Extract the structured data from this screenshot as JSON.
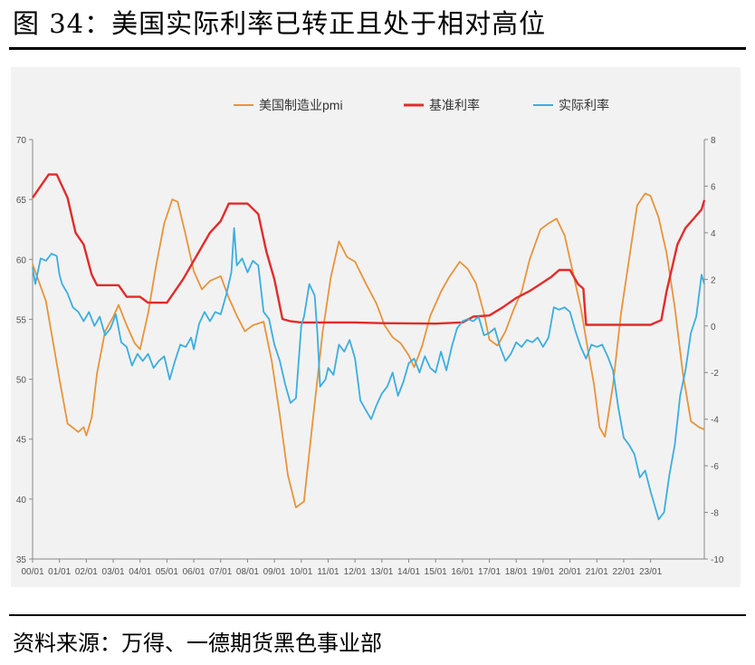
{
  "header": {
    "title": "图 34：美国实际利率已转正且处于相对高位"
  },
  "footer": {
    "source": "资料来源：万得、一德期货黑色事业部"
  },
  "chart_data": {
    "type": "line",
    "title": "",
    "legend_position": "top",
    "grid": false,
    "x_ticks": [
      "00/01",
      "01/01",
      "02/01",
      "03/01",
      "04/01",
      "05/01",
      "06/01",
      "07/01",
      "08/01",
      "09/01",
      "10/01",
      "11/01",
      "12/01",
      "13/01",
      "14/01",
      "15/01",
      "16/01",
      "17/01",
      "18/01",
      "19/01",
      "20/01",
      "21/01",
      "22/01",
      "23/01"
    ],
    "y_left": {
      "min": 35,
      "max": 70,
      "ticks": [
        35,
        40,
        45,
        50,
        55,
        60,
        65,
        70
      ]
    },
    "y_right": {
      "min": -10,
      "max": 8,
      "ticks": [
        -10,
        -8,
        -6,
        -4,
        -2,
        0,
        2,
        4,
        6,
        8
      ]
    },
    "series": [
      {
        "name": "美国制造业pmi",
        "axis": "left",
        "color": "#e8943a",
        "points": [
          [
            2000.0,
            59.6
          ],
          [
            2000.5,
            56.5
          ],
          [
            2001.0,
            50.0
          ],
          [
            2001.3,
            46.3
          ],
          [
            2001.7,
            45.6
          ],
          [
            2001.9,
            46.0
          ],
          [
            2002.0,
            45.3
          ],
          [
            2002.2,
            46.8
          ],
          [
            2002.4,
            50.5
          ],
          [
            2002.7,
            54.0
          ],
          [
            2003.0,
            55.2
          ],
          [
            2003.2,
            56.2
          ],
          [
            2003.5,
            54.5
          ],
          [
            2003.8,
            53.0
          ],
          [
            2004.0,
            52.5
          ],
          [
            2004.3,
            55.5
          ],
          [
            2004.6,
            59.5
          ],
          [
            2004.9,
            63.0
          ],
          [
            2005.2,
            65.0
          ],
          [
            2005.4,
            64.8
          ],
          [
            2005.7,
            62.0
          ],
          [
            2006.0,
            59.0
          ],
          [
            2006.3,
            57.5
          ],
          [
            2006.6,
            58.2
          ],
          [
            2007.0,
            58.6
          ],
          [
            2007.3,
            56.8
          ],
          [
            2007.6,
            55.3
          ],
          [
            2007.9,
            54.0
          ],
          [
            2008.2,
            54.5
          ],
          [
            2008.6,
            54.8
          ],
          [
            2008.9,
            51.5
          ],
          [
            2009.2,
            47.0
          ],
          [
            2009.5,
            42.0
          ],
          [
            2009.8,
            39.3
          ],
          [
            2010.1,
            39.8
          ],
          [
            2010.4,
            46.0
          ],
          [
            2010.8,
            54.0
          ],
          [
            2011.1,
            58.5
          ],
          [
            2011.4,
            61.5
          ],
          [
            2011.7,
            60.2
          ],
          [
            2012.0,
            59.8
          ],
          [
            2012.4,
            58.0
          ],
          [
            2012.8,
            56.3
          ],
          [
            2013.1,
            54.5
          ],
          [
            2013.4,
            53.5
          ],
          [
            2013.7,
            53.0
          ],
          [
            2014.0,
            52.0
          ],
          [
            2014.2,
            51.0
          ],
          [
            2014.5,
            52.8
          ],
          [
            2014.8,
            55.3
          ],
          [
            2015.2,
            57.3
          ],
          [
            2015.5,
            58.5
          ],
          [
            2015.9,
            59.8
          ],
          [
            2016.2,
            59.2
          ],
          [
            2016.5,
            58.0
          ],
          [
            2016.8,
            55.5
          ],
          [
            2017.0,
            53.3
          ],
          [
            2017.3,
            52.8
          ],
          [
            2017.6,
            54.0
          ],
          [
            2017.9,
            55.8
          ],
          [
            2018.2,
            57.3
          ],
          [
            2018.5,
            60.0
          ],
          [
            2018.9,
            62.5
          ],
          [
            2019.2,
            63.0
          ],
          [
            2019.5,
            63.4
          ],
          [
            2019.8,
            62.0
          ],
          [
            2020.1,
            59.0
          ],
          [
            2020.4,
            56.0
          ],
          [
            2020.7,
            52.0
          ],
          [
            2020.9,
            49.5
          ],
          [
            2021.1,
            46.0
          ],
          [
            2021.3,
            45.2
          ],
          [
            2021.6,
            49.5
          ],
          [
            2021.9,
            55.5
          ],
          [
            2022.2,
            60.0
          ],
          [
            2022.5,
            64.5
          ],
          [
            2022.8,
            65.5
          ],
          [
            2023.0,
            65.3
          ],
          [
            2023.3,
            63.5
          ],
          [
            2023.6,
            60.5
          ],
          [
            2023.9,
            56.0
          ],
          [
            2024.2,
            50.5
          ],
          [
            2024.5,
            46.5
          ],
          [
            2024.8,
            46.0
          ],
          [
            2025.0,
            45.8
          ]
        ]
      },
      {
        "name": "基准利率",
        "axis": "right",
        "color": "#e32b2b",
        "points": [
          [
            2000.0,
            5.5
          ],
          [
            2000.3,
            6.0
          ],
          [
            2000.6,
            6.5
          ],
          [
            2000.9,
            6.5
          ],
          [
            2001.3,
            5.5
          ],
          [
            2001.6,
            4.0
          ],
          [
            2001.9,
            3.5
          ],
          [
            2002.2,
            2.2
          ],
          [
            2002.4,
            1.75
          ],
          [
            2002.8,
            1.75
          ],
          [
            2003.2,
            1.75
          ],
          [
            2003.5,
            1.25
          ],
          [
            2004.0,
            1.25
          ],
          [
            2004.3,
            1.0
          ],
          [
            2005.0,
            1.0
          ],
          [
            2005.6,
            2.0
          ],
          [
            2006.1,
            3.0
          ],
          [
            2006.6,
            4.0
          ],
          [
            2007.0,
            4.5
          ],
          [
            2007.3,
            5.25
          ],
          [
            2008.0,
            5.25
          ],
          [
            2008.4,
            4.8
          ],
          [
            2008.7,
            3.2
          ],
          [
            2009.0,
            2.0
          ],
          [
            2009.3,
            0.3
          ],
          [
            2009.6,
            0.2
          ],
          [
            2010.0,
            0.15
          ],
          [
            2012.0,
            0.15
          ],
          [
            2013.0,
            0.12
          ],
          [
            2015.0,
            0.1
          ],
          [
            2016.0,
            0.15
          ],
          [
            2016.4,
            0.4
          ],
          [
            2017.0,
            0.45
          ],
          [
            2017.5,
            0.8
          ],
          [
            2018.0,
            1.2
          ],
          [
            2018.5,
            1.5
          ],
          [
            2018.9,
            1.8
          ],
          [
            2019.3,
            2.1
          ],
          [
            2019.6,
            2.4
          ],
          [
            2020.0,
            2.4
          ],
          [
            2020.3,
            1.8
          ],
          [
            2020.5,
            1.6
          ],
          [
            2020.6,
            0.05
          ],
          [
            2021.0,
            0.05
          ],
          [
            2023.0,
            0.05
          ],
          [
            2023.4,
            0.25
          ],
          [
            2023.6,
            1.5
          ],
          [
            2023.8,
            2.5
          ],
          [
            2024.0,
            3.5
          ],
          [
            2024.3,
            4.2
          ],
          [
            2024.6,
            4.6
          ],
          [
            2024.9,
            5.0
          ],
          [
            2025.0,
            5.4
          ]
        ]
      },
      {
        "name": "实际利率",
        "axis": "right",
        "color": "#3aaee0",
        "points": [
          [
            2000.0,
            2.5
          ],
          [
            2000.1,
            1.8
          ],
          [
            2000.3,
            2.9
          ],
          [
            2000.5,
            2.8
          ],
          [
            2000.7,
            3.1
          ],
          [
            2000.9,
            3.0
          ],
          [
            2001.0,
            2.2
          ],
          [
            2001.1,
            1.8
          ],
          [
            2001.3,
            1.4
          ],
          [
            2001.5,
            0.8
          ],
          [
            2001.7,
            0.6
          ],
          [
            2001.9,
            0.2
          ],
          [
            2002.1,
            0.6
          ],
          [
            2002.3,
            0.0
          ],
          [
            2002.5,
            0.4
          ],
          [
            2002.7,
            -0.4
          ],
          [
            2002.9,
            -0.1
          ],
          [
            2003.1,
            0.5
          ],
          [
            2003.3,
            -0.7
          ],
          [
            2003.5,
            -0.9
          ],
          [
            2003.7,
            -1.7
          ],
          [
            2003.9,
            -1.2
          ],
          [
            2004.1,
            -1.5
          ],
          [
            2004.3,
            -1.2
          ],
          [
            2004.5,
            -1.8
          ],
          [
            2004.7,
            -1.5
          ],
          [
            2004.9,
            -1.3
          ],
          [
            2005.1,
            -2.3
          ],
          [
            2005.3,
            -1.5
          ],
          [
            2005.5,
            -0.8
          ],
          [
            2005.7,
            -0.9
          ],
          [
            2005.9,
            -0.5
          ],
          [
            2006.0,
            -1.0
          ],
          [
            2006.2,
            0.1
          ],
          [
            2006.4,
            0.6
          ],
          [
            2006.6,
            0.2
          ],
          [
            2006.8,
            0.6
          ],
          [
            2007.0,
            0.5
          ],
          [
            2007.2,
            1.3
          ],
          [
            2007.4,
            2.3
          ],
          [
            2007.5,
            4.2
          ],
          [
            2007.6,
            2.6
          ],
          [
            2007.8,
            2.9
          ],
          [
            2008.0,
            2.3
          ],
          [
            2008.2,
            2.8
          ],
          [
            2008.4,
            2.6
          ],
          [
            2008.6,
            0.6
          ],
          [
            2008.8,
            0.3
          ],
          [
            2009.0,
            -0.8
          ],
          [
            2009.2,
            -1.5
          ],
          [
            2009.4,
            -2.5
          ],
          [
            2009.6,
            -3.3
          ],
          [
            2009.8,
            -3.1
          ],
          [
            2010.0,
            0.0
          ],
          [
            2010.1,
            0.4
          ],
          [
            2010.3,
            1.8
          ],
          [
            2010.5,
            1.3
          ],
          [
            2010.6,
            -0.3
          ],
          [
            2010.7,
            -2.6
          ],
          [
            2010.9,
            -2.3
          ],
          [
            2011.0,
            -1.8
          ],
          [
            2011.2,
            -2.1
          ],
          [
            2011.4,
            -0.8
          ],
          [
            2011.6,
            -1.1
          ],
          [
            2011.8,
            -0.6
          ],
          [
            2012.0,
            -1.4
          ],
          [
            2012.2,
            -3.2
          ],
          [
            2012.4,
            -3.6
          ],
          [
            2012.6,
            -4.0
          ],
          [
            2012.8,
            -3.4
          ],
          [
            2013.0,
            -2.9
          ],
          [
            2013.2,
            -2.6
          ],
          [
            2013.4,
            -2.0
          ],
          [
            2013.6,
            -3.0
          ],
          [
            2013.8,
            -2.4
          ],
          [
            2014.0,
            -1.6
          ],
          [
            2014.2,
            -1.4
          ],
          [
            2014.4,
            -2.0
          ],
          [
            2014.6,
            -1.3
          ],
          [
            2014.8,
            -1.8
          ],
          [
            2015.0,
            -2.0
          ],
          [
            2015.2,
            -1.1
          ],
          [
            2015.4,
            -1.9
          ],
          [
            2015.6,
            -0.9
          ],
          [
            2015.8,
            -0.1
          ],
          [
            2016.0,
            0.2
          ],
          [
            2016.2,
            0.3
          ],
          [
            2016.4,
            0.2
          ],
          [
            2016.6,
            0.4
          ],
          [
            2016.8,
            -0.4
          ],
          [
            2017.0,
            -0.3
          ],
          [
            2017.2,
            -0.1
          ],
          [
            2017.4,
            -0.9
          ],
          [
            2017.6,
            -1.5
          ],
          [
            2017.8,
            -1.2
          ],
          [
            2018.0,
            -0.7
          ],
          [
            2018.2,
            -0.9
          ],
          [
            2018.4,
            -0.6
          ],
          [
            2018.6,
            -0.7
          ],
          [
            2018.8,
            -0.5
          ],
          [
            2019.0,
            -0.9
          ],
          [
            2019.2,
            -0.5
          ],
          [
            2019.4,
            0.8
          ],
          [
            2019.6,
            0.7
          ],
          [
            2019.8,
            0.8
          ],
          [
            2020.0,
            0.6
          ],
          [
            2020.2,
            -0.2
          ],
          [
            2020.4,
            -0.9
          ],
          [
            2020.6,
            -1.4
          ],
          [
            2020.8,
            -0.8
          ],
          [
            2021.0,
            -0.9
          ],
          [
            2021.2,
            -0.8
          ],
          [
            2021.4,
            -1.3
          ],
          [
            2021.6,
            -1.9
          ],
          [
            2021.8,
            -3.5
          ],
          [
            2022.0,
            -4.8
          ],
          [
            2022.2,
            -5.1
          ],
          [
            2022.4,
            -5.5
          ],
          [
            2022.6,
            -6.5
          ],
          [
            2022.8,
            -6.2
          ],
          [
            2023.0,
            -7.1
          ],
          [
            2023.2,
            -7.9
          ],
          [
            2023.3,
            -8.3
          ],
          [
            2023.5,
            -8.0
          ],
          [
            2023.7,
            -6.4
          ],
          [
            2023.9,
            -5.1
          ],
          [
            2024.1,
            -3.0
          ],
          [
            2024.3,
            -1.9
          ],
          [
            2024.5,
            -0.3
          ],
          [
            2024.7,
            0.4
          ],
          [
            2024.9,
            2.2
          ],
          [
            2025.0,
            1.8
          ]
        ]
      }
    ]
  }
}
